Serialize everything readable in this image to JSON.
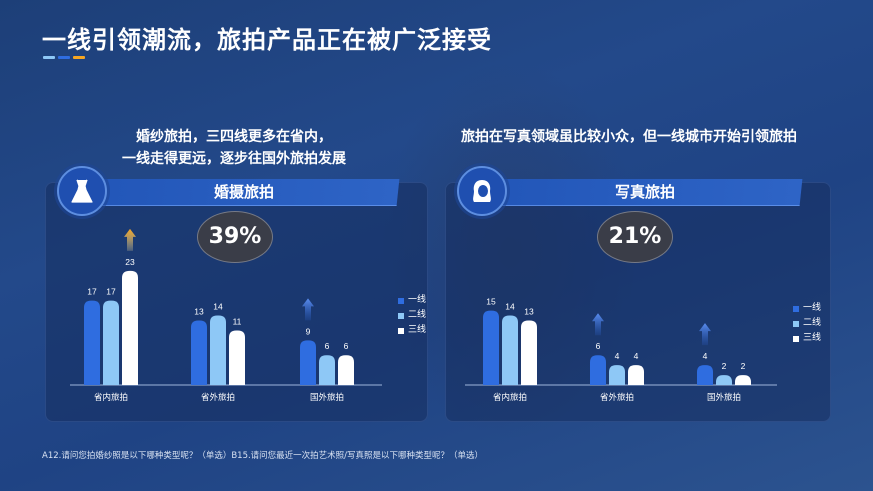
{
  "title": "一线引领潮流，旅拍产品正在被广泛接受",
  "colors": {
    "series1": "#2f6de0",
    "series2": "#8ec8f6",
    "series3": "#ffffff",
    "accent_up": "#f5a623"
  },
  "left": {
    "subtitle_line1": "婚纱旅拍，三四线更多在省内，",
    "subtitle_line2": "一线走得更远，逐步往国外旅拍发展",
    "section_title": "婚摄旅拍",
    "icon": "wedding-dress-icon",
    "percentage": "39%"
  },
  "right": {
    "subtitle": "旅拍在写真领域虽比较小众，但一线城市开始引领旅拍",
    "section_title": "写真旅拍",
    "icon": "woman-portrait-icon",
    "percentage": "21%"
  },
  "footnote": "A12.请问您拍婚纱照是以下哪种类型呢？（单选）B15.请问您最近一次拍艺术照/写真照是以下哪种类型呢？（单选）",
  "chart_data": [
    {
      "type": "bar",
      "categories": [
        "省内旅拍",
        "省外旅拍",
        "国外旅拍"
      ],
      "series": [
        {
          "name": "一线",
          "values": [
            17,
            13,
            9
          ]
        },
        {
          "name": "二线",
          "values": [
            17,
            14,
            6
          ]
        },
        {
          "name": "三线",
          "values": [
            23,
            11,
            6
          ]
        }
      ],
      "ylim": [
        0,
        25
      ],
      "legend": "right",
      "arrows": [
        {
          "category": "省内旅拍",
          "series": "三线",
          "color": "orange"
        },
        {
          "category": "国外旅拍",
          "series": "一线",
          "color": "blue"
        }
      ]
    },
    {
      "type": "bar",
      "categories": [
        "省内旅拍",
        "省外旅拍",
        "国外旅拍"
      ],
      "series": [
        {
          "name": "一线",
          "values": [
            15,
            6,
            4
          ]
        },
        {
          "name": "二线",
          "values": [
            14,
            4,
            2
          ]
        },
        {
          "name": "三线",
          "values": [
            13,
            4,
            2
          ]
        }
      ],
      "ylim": [
        0,
        25
      ],
      "legend": "right",
      "arrows": [
        {
          "category": "省外旅拍",
          "series": "一线",
          "color": "blue"
        },
        {
          "category": "国外旅拍",
          "series": "一线",
          "color": "blue"
        }
      ]
    }
  ]
}
